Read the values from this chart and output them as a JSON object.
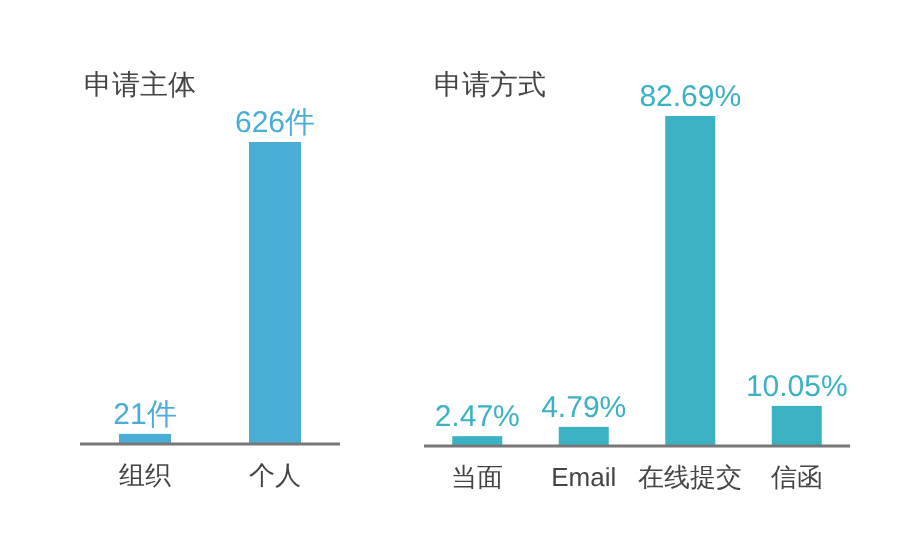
{
  "chart_data": [
    {
      "type": "bar",
      "title": "申请主体",
      "categories": [
        "组织",
        "个人"
      ],
      "series": [
        {
          "color": "#4aadd6",
          "values": [
            21,
            626
          ],
          "value_labels": [
            "21件",
            "626件"
          ]
        }
      ]
    },
    {
      "type": "bar",
      "title": "申请方式",
      "categories": [
        "当面",
        "Email",
        "在线提交",
        "信函"
      ],
      "series": [
        {
          "color": "#3bb2c3",
          "values": [
            2.47,
            4.79,
            82.69,
            10.05
          ],
          "value_labels": [
            "2.47%",
            "4.79%",
            "82.69%",
            "10.05%"
          ]
        }
      ]
    }
  ]
}
